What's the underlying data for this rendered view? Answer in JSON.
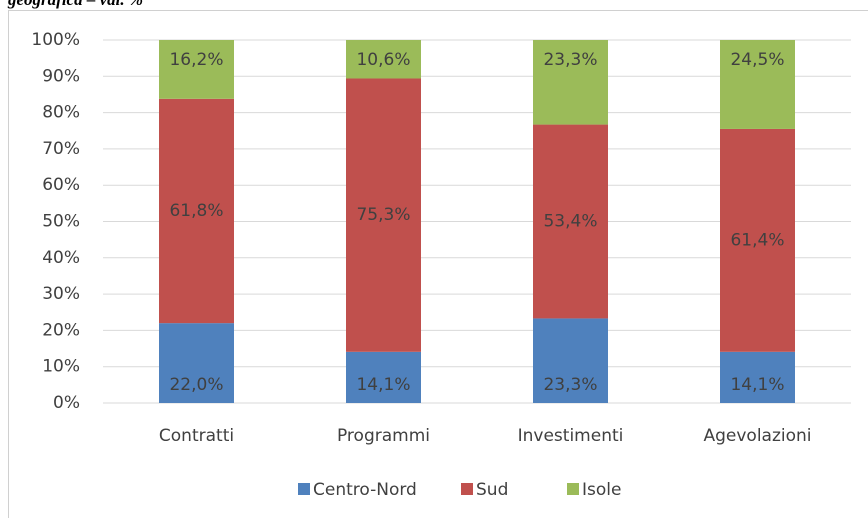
{
  "chart_data": {
    "type": "stacked_bar",
    "title": "geografica – val. %",
    "categories": [
      "Contratti",
      "Programmi",
      "Investimenti",
      "Agevolazioni"
    ],
    "series": [
      {
        "name": "Centro-Nord",
        "color": "#4f81bd",
        "values": [
          22.0,
          14.1,
          23.3,
          14.1
        ],
        "value_labels": [
          "22,0%",
          "14,1%",
          "23,3%",
          "14,1%"
        ]
      },
      {
        "name": "Sud",
        "color": "#c0504d",
        "values": [
          61.8,
          75.3,
          53.4,
          61.4
        ],
        "value_labels": [
          "61,8%",
          "75,3%",
          "53,4%",
          "61,4%"
        ]
      },
      {
        "name": "Isole",
        "color": "#9bbb59",
        "values": [
          16.2,
          10.6,
          23.3,
          24.5
        ],
        "value_labels": [
          "16,2%",
          "10,6%",
          "23,3%",
          "24,5%"
        ]
      }
    ],
    "ylim": [
      0,
      100
    ],
    "yticks": [
      {
        "value": 0,
        "label": "0%"
      },
      {
        "value": 10,
        "label": "10%"
      },
      {
        "value": 20,
        "label": "20%"
      },
      {
        "value": 30,
        "label": "30%"
      },
      {
        "value": 40,
        "label": "40%"
      },
      {
        "value": 50,
        "label": "50%"
      },
      {
        "value": 60,
        "label": "60%"
      },
      {
        "value": 70,
        "label": "70%"
      },
      {
        "value": 80,
        "label": "80%"
      },
      {
        "value": 90,
        "label": "90%"
      },
      {
        "value": 100,
        "label": "100%"
      }
    ],
    "grid": true,
    "legend": "bottom"
  }
}
